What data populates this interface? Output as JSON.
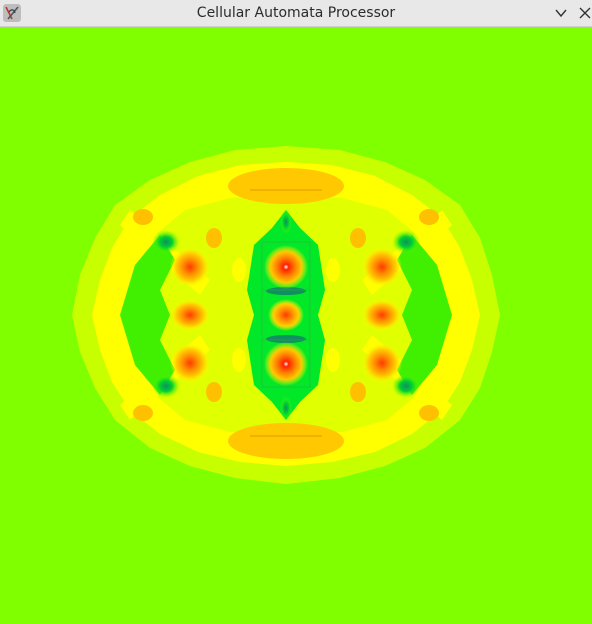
{
  "window": {
    "title": "Cellular Automata Processor",
    "icons": {
      "app": "app-logo-icon",
      "minimize": "chevron-down-icon",
      "close": "close-icon"
    }
  },
  "colors": {
    "background": "#80ff00",
    "yellow": "#ffff00",
    "light_yellow": "#e6ff00",
    "orange": "#ffc000",
    "red": "#ff3000",
    "green": "#00ee20",
    "teal": "#10a060"
  }
}
